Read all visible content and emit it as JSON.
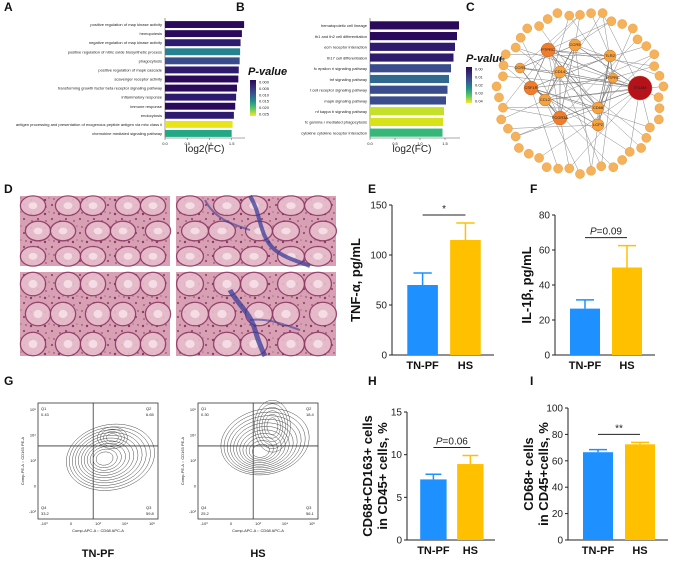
{
  "colors": {
    "blue": "#1e90ff",
    "yellow": "#ffc000",
    "purple_dark": "#3b0f70",
    "teal": "#2a9d8f",
    "lime": "#c4e02a",
    "he_pink": "#d9a3b6",
    "collagen_blue": "#3a3c9a",
    "node_orange": "#f4a340",
    "node_red": "#b5121b"
  },
  "panel_labels": {
    "A": "A",
    "B": "B",
    "C": "C",
    "D": "D",
    "E": "E",
    "F": "F",
    "G": "G",
    "H": "H",
    "I": "I"
  },
  "panel_a": {
    "xlabel": "log2(FC)",
    "legend_title": "P-value",
    "legend_ticks": [
      "0.000",
      "0.005",
      "0.010",
      "0.015",
      "0.020",
      "0.025"
    ],
    "xticks": [
      "0.0",
      "0.5",
      "1.0",
      "1.5"
    ],
    "terms": [
      "positive regulation of map kinase activity",
      "hemopoiesis",
      "negative regulation of map kinase activity",
      "positive regulation of nitric oxide biosynthetic process",
      "phagocytosis",
      "positive regulation of mapk cascade",
      "scavenger receptor activity",
      "transforming growth factor beta receptor signaling pathway",
      "inflammatory response",
      "immune response",
      "endocytosis",
      "antigen processing and presentation of exogenous peptide antigen via mhc class ii",
      "chemokine mediated signaling pathway"
    ],
    "values": [
      1.78,
      1.73,
      1.7,
      1.69,
      1.68,
      1.66,
      1.65,
      1.62,
      1.6,
      1.58,
      1.55,
      1.52,
      1.5
    ],
    "colors": [
      "#2b0a5c",
      "#2b0a5c",
      "#2e1a6e",
      "#26828e",
      "#3b4c8c",
      "#2f1b6e",
      "#2b0a5c",
      "#2b0a5c",
      "#2e1a6e",
      "#2b0a5c",
      "#2e1a6e",
      "#e8e419",
      "#22a884"
    ]
  },
  "panel_b": {
    "xlabel": "log2(FC)",
    "legend_title": "P-value",
    "legend_ticks": [
      "0.00",
      "0.01",
      "0.02",
      "0.03",
      "0.04"
    ],
    "xticks": [
      "0.0",
      "0.5",
      "1.0",
      "1.5"
    ],
    "terms": [
      "hematopoietic cell lineage",
      "th1 and th2 cell differentiation",
      "ecm receptor interaction",
      "th17 cell differentiation",
      "fc epsilon ri signaling pathway",
      "tnf signaling pathway",
      "t cell receptor signaling pathway",
      "mapk signaling pathway",
      "nf kappa b signaling pathway",
      "fc gamma r mediated phagocytosis",
      "cytokine cytokine receptor interaction"
    ],
    "values": [
      1.78,
      1.74,
      1.7,
      1.67,
      1.62,
      1.58,
      1.55,
      1.52,
      1.48,
      1.46,
      1.45
    ],
    "colors": [
      "#2b0a5c",
      "#2b0a5c",
      "#2f1b6e",
      "#2f1b6e",
      "#3b4c8c",
      "#31688e",
      "#3b4c8c",
      "#3b4c8c",
      "#c4e02a",
      "#d8e219",
      "#35b779"
    ]
  },
  "panel_c": {
    "hub_labels": [
      "PTPRC",
      "CCR5",
      "TLR2",
      "ITGAM",
      "CSF1R",
      "CD14",
      "CD68",
      "FCGR3A",
      "LCP2",
      "CCL2"
    ]
  },
  "panel_e": {
    "ylabel": "TNF-α, pg/mL",
    "categories": [
      "TN-PF",
      "HS"
    ],
    "values": [
      70,
      115
    ],
    "errors": [
      12,
      17
    ],
    "ylim": [
      0,
      150
    ],
    "yticks": [
      "0",
      "50",
      "100",
      "150"
    ],
    "annotation": "*"
  },
  "panel_f": {
    "ylabel": "IL-1β, pg/mL",
    "categories": [
      "TN-PF",
      "HS"
    ],
    "values": [
      26.5,
      50
    ],
    "errors": [
      5,
      12.5
    ],
    "ylim": [
      0,
      80
    ],
    "yticks": [
      "0",
      "20",
      "40",
      "60",
      "80"
    ],
    "annotation": "P=0.09"
  },
  "panel_g": {
    "groups": [
      {
        "name": "TN-PF",
        "q1_label": "Q1",
        "q1_value": "0.43",
        "q2_label": "Q2",
        "q2_value": "6.65",
        "q3_label": "Q3",
        "q3_value": "59.8",
        "q4_label": "Q4",
        "q4_value": "33.2"
      },
      {
        "name": "HS",
        "q1_label": "Q1",
        "q1_value": "0.30",
        "q2_label": "Q2",
        "q2_value": "18.4",
        "q3_label": "Q3",
        "q3_value": "56.1",
        "q4_label": "Q4",
        "q4_value": "25.2"
      }
    ],
    "xaxis_label": "Comp-APC-A :: CD68 APC-A",
    "yaxis_label": "Comp-PE-A :: CD163 PE-A",
    "yticks": [
      "10⁵",
      "10⁴",
      "10³",
      "0",
      "-10³"
    ],
    "xticks": [
      "-10³",
      "0",
      "10³",
      "10⁴",
      "10⁵"
    ]
  },
  "panel_h": {
    "ylabel_line1": "CD68+CD163+ cells",
    "ylabel_line2": "in CD45+ cells, %",
    "categories": [
      "TN-PF",
      "HS"
    ],
    "values": [
      7.1,
      8.9
    ],
    "errors": [
      0.6,
      1.0
    ],
    "ylim": [
      0,
      15
    ],
    "yticks": [
      "0",
      "5",
      "10",
      "15"
    ],
    "annotation": "P=0.06"
  },
  "panel_i": {
    "ylabel_line1": "CD68+ cells",
    "ylabel_line2": "in CD45+cells, %",
    "categories": [
      "TN-PF",
      "HS"
    ],
    "values": [
      66.5,
      72.5
    ],
    "errors": [
      2,
      1.5
    ],
    "ylim": [
      0,
      100
    ],
    "yticks": [
      "0",
      "20",
      "40",
      "60",
      "80",
      "100"
    ],
    "annotation": "**"
  }
}
